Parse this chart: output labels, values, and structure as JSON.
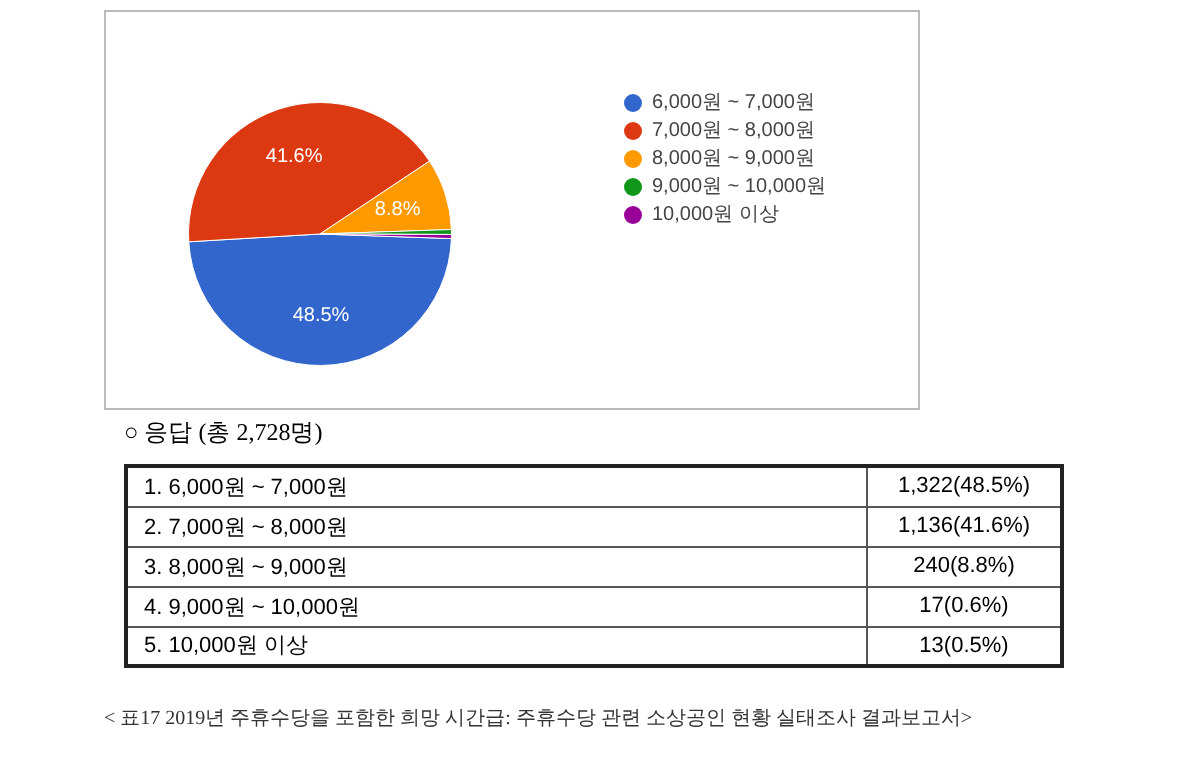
{
  "chart_data": {
    "type": "pie",
    "subtitle": "○ 응답 (총 2,728명)",
    "categories": [
      "6,000원 ~ 7,000원",
      "7,000원 ~ 8,000원",
      "8,000원 ~ 9,000원",
      "9,000원 ~ 10,000원",
      "10,000원 이상"
    ],
    "values": [
      48.5,
      41.6,
      8.8,
      0.6,
      0.5
    ],
    "colors": [
      "#3366cc",
      "#dc3912",
      "#ff9900",
      "#109618",
      "#990099"
    ],
    "legend": "right",
    "annotations": [
      {
        "text": "48.5%",
        "x": "6,000원 ~ 7,000원"
      },
      {
        "text": "41.6%",
        "x": "7,000원 ~ 8,000원"
      },
      {
        "text": "8.8%",
        "x": "8,000원 ~ 9,000원"
      },
      "1. 6,000원 ~ 7,000원",
      "1,322(48.5%)",
      "2. 7,000원 ~ 8,000원",
      "1,136(41.6%)",
      "3. 8,000원 ~ 9,000원",
      "240(8.8%)",
      "4. 9,000원 ~ 10,000원",
      "17(0.6%)",
      "5. 10,000원 이상",
      "13(0.5%)",
      "< 표17 2019년 주휴수당을 포함한 희망 시간급: 주휴수당 관련 소상공인 현황 실태조사 결과보고서>"
    ]
  }
}
